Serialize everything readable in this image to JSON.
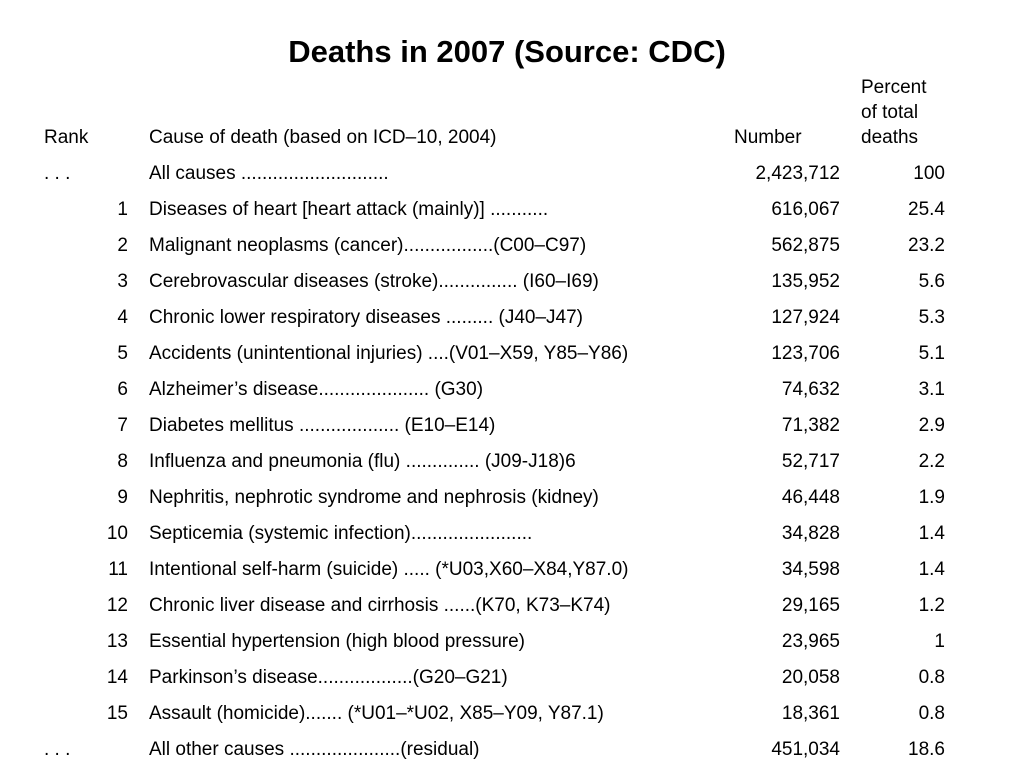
{
  "title": "Deaths in 2007 (Source: CDC)",
  "headers": {
    "rank": "Rank",
    "cause": "Cause of death (based on ICD–10, 2004)",
    "number": "Number",
    "percent_line1": "Percent",
    "percent_line2": "of total",
    "percent_line3": "deaths"
  },
  "rows": [
    {
      "rank": ". . .",
      "cause": "All causes ............................",
      "number": "2,423,712",
      "percent": "100"
    },
    {
      "rank": "1",
      "cause": "Diseases of heart [heart attack (mainly)] ...........",
      "number": "616,067",
      "percent": "25.4"
    },
    {
      "rank": "2",
      "cause": "Malignant neoplasms (cancer).................(C00–C97)",
      "number": "562,875",
      "percent": "23.2"
    },
    {
      "rank": "3",
      "cause": "Cerebrovascular diseases (stroke)............... (I60–I69)",
      "number": "135,952",
      "percent": "5.6"
    },
    {
      "rank": "4",
      "cause": "Chronic lower respiratory diseases ......... (J40–J47)",
      "number": "127,924",
      "percent": "5.3"
    },
    {
      "rank": "5",
      "cause": "Accidents (unintentional injuries) ....(V01–X59, Y85–Y86)",
      "number": "123,706",
      "percent": "5.1"
    },
    {
      "rank": "6",
      "cause": "Alzheimer’s disease..................... (G30)",
      "number": "74,632",
      "percent": "3.1"
    },
    {
      "rank": "7",
      "cause": "Diabetes mellitus ................... (E10–E14)",
      "number": "71,382",
      "percent": "2.9"
    },
    {
      "rank": "8",
      "cause": "Influenza and pneumonia (flu) .............. (J09-J18)6",
      "number": "52,717",
      "percent": "2.2"
    },
    {
      "rank": "9",
      "cause": "Nephritis, nephrotic syndrome and nephrosis (kidney)",
      "number": "46,448",
      "percent": "1.9"
    },
    {
      "rank": "10",
      "cause": "Septicemia (systemic infection).......................",
      "number": "34,828",
      "percent": "1.4"
    },
    {
      "rank": "11",
      "cause": "Intentional self-harm (suicide) ..... (*U03,X60–X84,Y87.0)",
      "number": "34,598",
      "percent": "1.4"
    },
    {
      "rank": "12",
      "cause": "Chronic liver disease and cirrhosis ......(K70, K73–K74)",
      "number": "29,165",
      "percent": "1.2"
    },
    {
      "rank": "13",
      "cause": "Essential hypertension (high blood pressure)",
      "number": "23,965",
      "percent": "1"
    },
    {
      "rank": "14",
      "cause": "Parkinson’s disease..................(G20–G21)",
      "number": "20,058",
      "percent": "0.8"
    },
    {
      "rank": "15",
      "cause": "Assault (homicide)....... (*U01–*U02, X85–Y09, Y87.1)",
      "number": "18,361",
      "percent": "0.8"
    },
    {
      "rank": ". . .",
      "cause": "All other causes .....................(residual)",
      "number": "451,034",
      "percent": "18.6"
    }
  ]
}
